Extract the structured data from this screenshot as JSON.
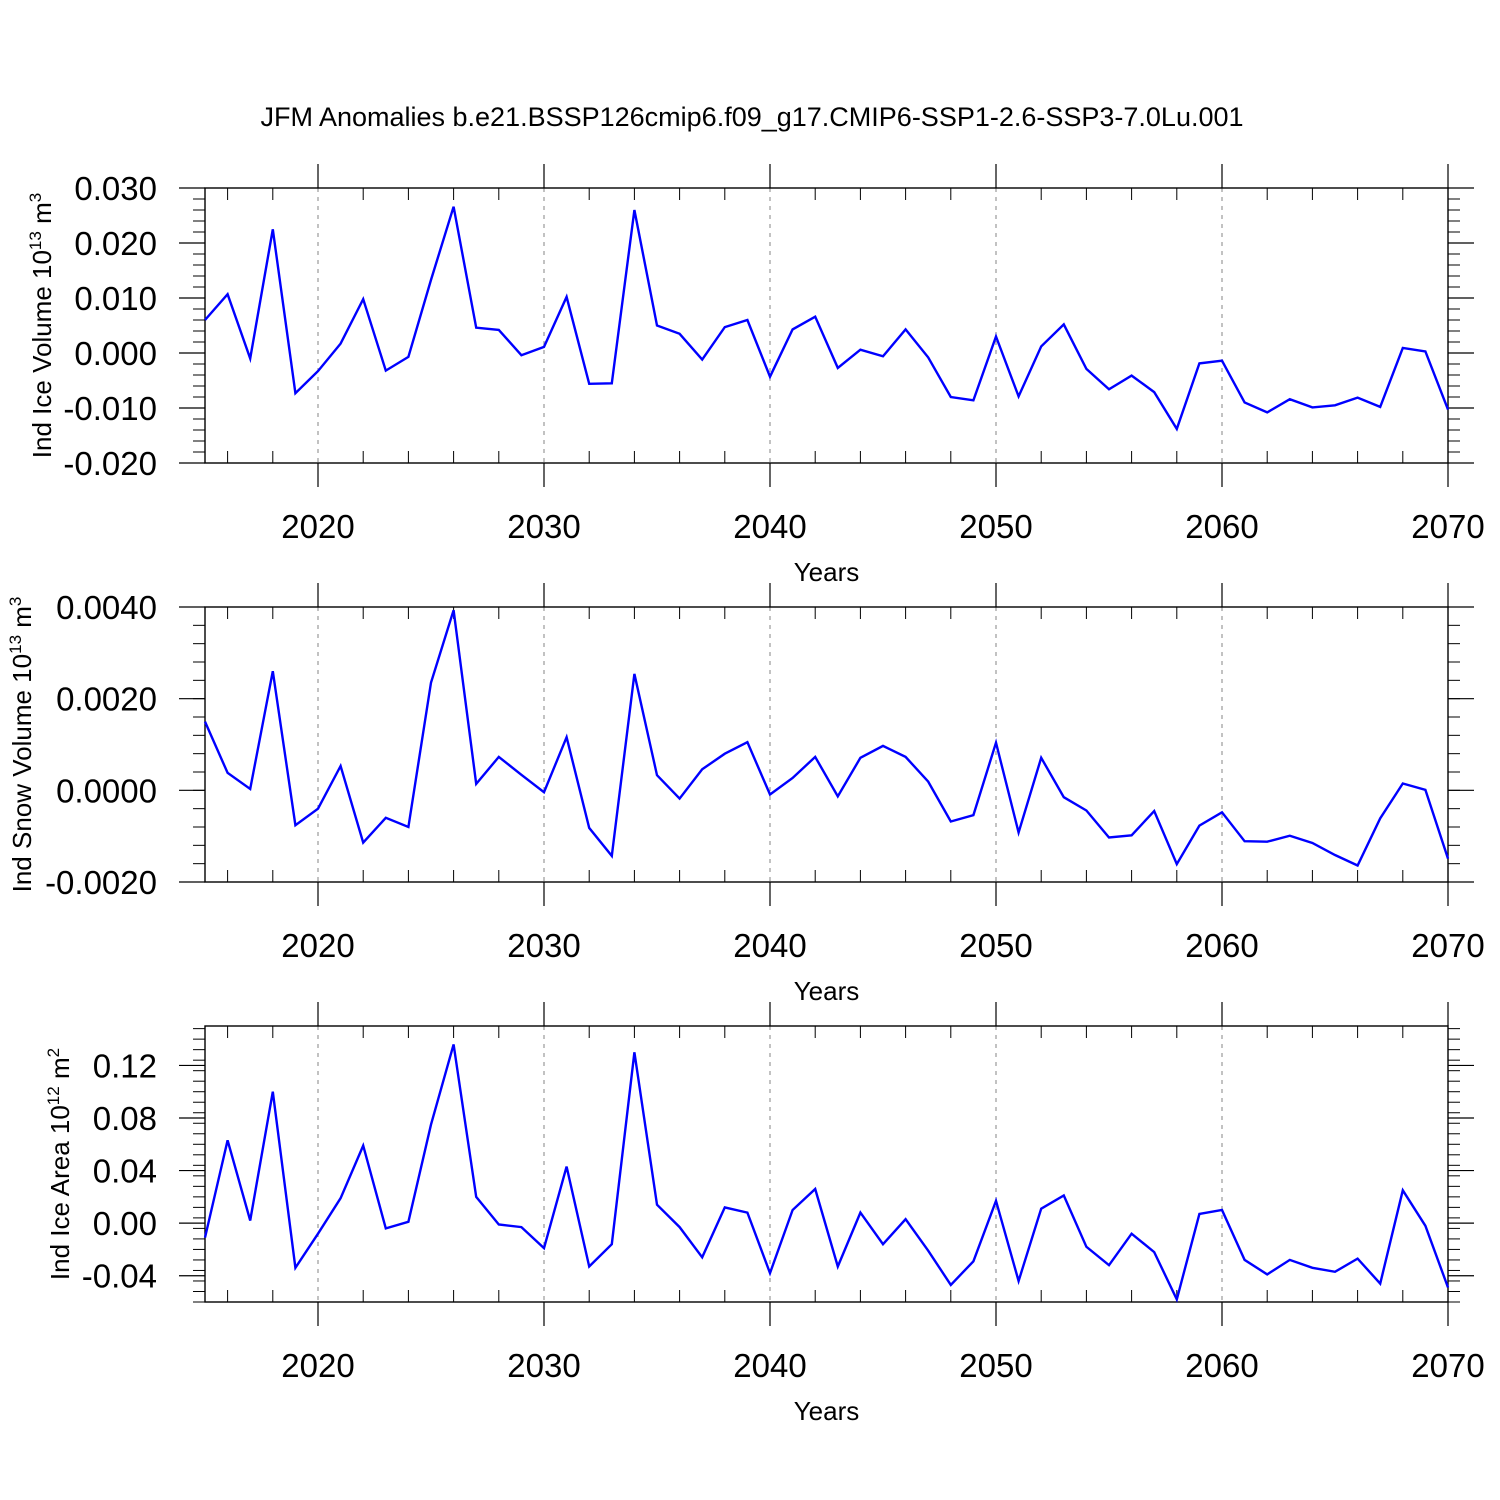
{
  "title": "JFM Anomalies b.e21.BSSP126cmip6.f09_g17.CMIP6-SSP1-2.6-SSP3-7.0Lu.001",
  "colors": {
    "line": "#0000ff",
    "axis": "#000000",
    "grid": "#999999"
  },
  "chart_data": [
    {
      "type": "line",
      "ylabel": {
        "main": "Ind Ice Volume 10",
        "sup": "13",
        "unit": " m",
        "unit_sup": "3"
      },
      "xlabel": "Years",
      "xlim": [
        2015,
        2070
      ],
      "ylim": [
        -0.02,
        0.03
      ],
      "yticks": [
        -0.02,
        -0.01,
        0.0,
        0.01,
        0.02,
        0.03
      ],
      "ytick_labels": [
        "-0.020",
        "-0.010",
        "0.000",
        "0.010",
        "0.020",
        "0.030"
      ],
      "xticks": [
        2020,
        2030,
        2040,
        2050,
        2060,
        2070
      ],
      "xtick_labels": [
        "2020",
        "2030",
        "2040",
        "2050",
        "2060",
        "2070"
      ],
      "series": [
        {
          "name": "Ind Ice Volume",
          "x": [
            2015,
            2016,
            2017,
            2018,
            2019,
            2020,
            2021,
            2022,
            2023,
            2024,
            2025,
            2026,
            2027,
            2028,
            2029,
            2030,
            2031,
            2032,
            2033,
            2034,
            2035,
            2036,
            2037,
            2038,
            2039,
            2040,
            2041,
            2042,
            2043,
            2044,
            2045,
            2046,
            2047,
            2048,
            2049,
            2050,
            2051,
            2052,
            2053,
            2054,
            2055,
            2056,
            2057,
            2058,
            2059,
            2060,
            2061,
            2062,
            2063,
            2064,
            2065,
            2066,
            2067,
            2068,
            2069,
            2070
          ],
          "values": [
            0.006,
            0.0107,
            -0.001,
            0.0225,
            -0.0073,
            -0.0033,
            0.0017,
            0.0098,
            -0.0032,
            -0.0007,
            0.0133,
            0.0266,
            0.0046,
            0.0042,
            -0.0004,
            0.0011,
            0.0102,
            -0.0056,
            -0.0055,
            0.026,
            0.005,
            0.0035,
            -0.0012,
            0.0047,
            0.006,
            -0.0043,
            0.0043,
            0.0066,
            -0.0027,
            0.0006,
            -0.0006,
            0.0043,
            -0.0008,
            -0.008,
            -0.0086,
            0.003,
            -0.0079,
            0.0012,
            0.0052,
            -0.0029,
            -0.0066,
            -0.0041,
            -0.0071,
            -0.0138,
            -0.0019,
            -0.0014,
            -0.009,
            -0.0108,
            -0.0084,
            -0.0099,
            -0.0095,
            -0.0081,
            -0.0098,
            0.0009,
            0.0003,
            -0.0103
          ]
        }
      ]
    },
    {
      "type": "line",
      "ylabel": {
        "main": "Ind Snow Volume 10",
        "sup": "13",
        "unit": " m",
        "unit_sup": "3"
      },
      "xlabel": "Years",
      "xlim": [
        2015,
        2070
      ],
      "ylim": [
        -0.002,
        0.004
      ],
      "yticks": [
        -0.002,
        0.0,
        0.002,
        0.004
      ],
      "ytick_labels": [
        "-0.0020",
        "0.0000",
        "0.0020",
        "0.0040"
      ],
      "xticks": [
        2020,
        2030,
        2040,
        2050,
        2060,
        2070
      ],
      "xtick_labels": [
        "2020",
        "2030",
        "2040",
        "2050",
        "2060",
        "2070"
      ],
      "series": [
        {
          "name": "Ind Snow Volume",
          "x": [
            2015,
            2016,
            2017,
            2018,
            2019,
            2020,
            2021,
            2022,
            2023,
            2024,
            2025,
            2026,
            2027,
            2028,
            2029,
            2030,
            2031,
            2032,
            2033,
            2034,
            2035,
            2036,
            2037,
            2038,
            2039,
            2040,
            2041,
            2042,
            2043,
            2044,
            2045,
            2046,
            2047,
            2048,
            2049,
            2050,
            2051,
            2052,
            2053,
            2054,
            2055,
            2056,
            2057,
            2058,
            2059,
            2060,
            2061,
            2062,
            2063,
            2064,
            2065,
            2066,
            2067,
            2068,
            2069,
            2070
          ],
          "values": [
            0.0015,
            0.00038,
            3e-05,
            0.0026,
            -0.00076,
            -0.0004,
            0.00053,
            -0.00114,
            -0.0006,
            -0.0008,
            0.00235,
            0.00393,
            0.00014,
            0.00073,
            0.00034,
            -4e-05,
            0.00116,
            -0.00082,
            -0.00143,
            0.00254,
            0.00033,
            -0.00018,
            0.00046,
            0.0008,
            0.00105,
            -9e-05,
            0.00027,
            0.00073,
            -0.00013,
            0.00071,
            0.00097,
            0.00073,
            0.00019,
            -0.00068,
            -0.00054,
            0.00104,
            -0.00092,
            0.00071,
            -0.00015,
            -0.00044,
            -0.00103,
            -0.00098,
            -0.00045,
            -0.00161,
            -0.00077,
            -0.00048,
            -0.00111,
            -0.00112,
            -0.00099,
            -0.00115,
            -0.00141,
            -0.00164,
            -0.00061,
            0.00015,
            1e-05,
            -0.00149
          ]
        }
      ]
    },
    {
      "type": "line",
      "ylabel": {
        "main": "Ind Ice Area 10",
        "sup": "12",
        "unit": " m",
        "unit_sup": "2"
      },
      "xlabel": "Years",
      "xlim": [
        2015,
        2070
      ],
      "ylim": [
        -0.06,
        0.15
      ],
      "yticks": [
        -0.04,
        0.0,
        0.04,
        0.08,
        0.12
      ],
      "ytick_labels": [
        "-0.04",
        "0.00",
        "0.04",
        "0.08",
        "0.12"
      ],
      "xticks": [
        2020,
        2030,
        2040,
        2050,
        2060,
        2070
      ],
      "xtick_labels": [
        "2020",
        "2030",
        "2040",
        "2050",
        "2060",
        "2070"
      ],
      "series": [
        {
          "name": "Ind Ice Area",
          "x": [
            2015,
            2016,
            2017,
            2018,
            2019,
            2020,
            2021,
            2022,
            2023,
            2024,
            2025,
            2026,
            2027,
            2028,
            2029,
            2030,
            2031,
            2032,
            2033,
            2034,
            2035,
            2036,
            2037,
            2038,
            2039,
            2040,
            2041,
            2042,
            2043,
            2044,
            2045,
            2046,
            2047,
            2048,
            2049,
            2050,
            2051,
            2052,
            2053,
            2054,
            2055,
            2056,
            2057,
            2058,
            2059,
            2060,
            2061,
            2062,
            2063,
            2064,
            2065,
            2066,
            2067,
            2068,
            2069,
            2070
          ],
          "values": [
            -0.011,
            0.063,
            0.002,
            0.1,
            -0.034,
            -0.008,
            0.019,
            0.059,
            -0.004,
            0.001,
            0.075,
            0.136,
            0.02,
            -0.001,
            -0.003,
            -0.019,
            0.043,
            -0.033,
            -0.016,
            0.13,
            0.014,
            -0.003,
            -0.026,
            0.012,
            0.008,
            -0.038,
            0.01,
            0.026,
            -0.033,
            0.008,
            -0.016,
            0.003,
            -0.021,
            -0.047,
            -0.029,
            0.017,
            -0.044,
            0.011,
            0.021,
            -0.018,
            -0.032,
            -0.008,
            -0.022,
            -0.058,
            0.007,
            0.01,
            -0.028,
            -0.039,
            -0.028,
            -0.034,
            -0.037,
            -0.027,
            -0.046,
            0.025,
            -0.002,
            -0.049
          ]
        }
      ]
    }
  ]
}
